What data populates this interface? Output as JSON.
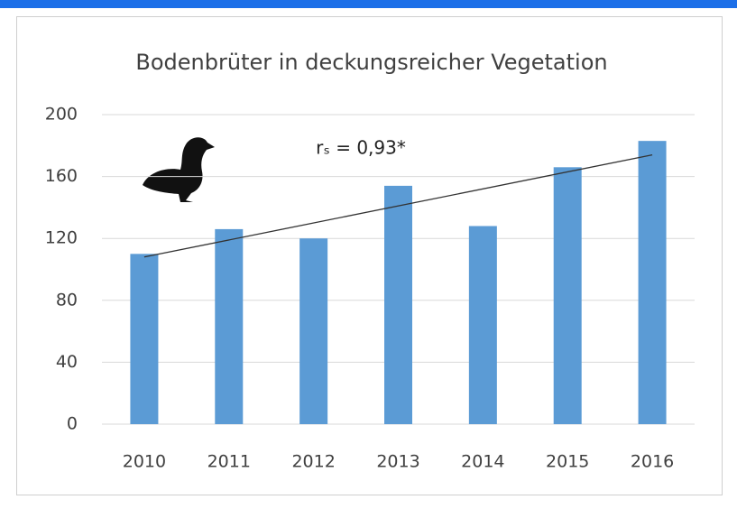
{
  "chart_data": {
    "type": "bar",
    "title": "Bodenbrüter in deckungsreicher Vegetation",
    "annotation": "rₛ = 0,93*",
    "categories": [
      "2010",
      "2011",
      "2012",
      "2013",
      "2014",
      "2015",
      "2016"
    ],
    "values": [
      110,
      126,
      120,
      154,
      128,
      166,
      183
    ],
    "color": "#5b9bd5",
    "trendline": {
      "x": [
        "2010",
        "2016"
      ],
      "values": [
        108,
        174
      ],
      "color": "#333333"
    },
    "ylim": [
      0,
      200
    ],
    "yticks": [
      0,
      40,
      80,
      120,
      160,
      200
    ],
    "grid": true
  }
}
